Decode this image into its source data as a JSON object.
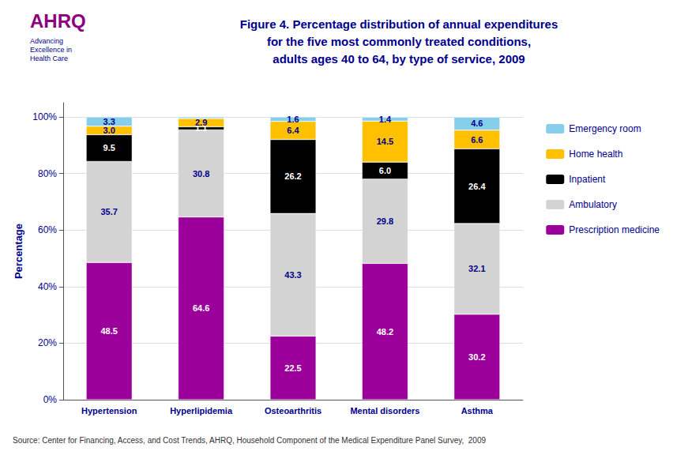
{
  "chart_data": {
    "type": "bar",
    "title": "Figure 4. Percentage distribution of annual expenditures\nfor the five most commonly treated conditions,\nadults ages 40 to 64, by type of service, 2009",
    "ylabel": "Percentage",
    "annotations": [
      "AHRQ",
      "Advancing\nExcellence in\nHealth Care",
      "Source: Center for Financing, Access, and Cost Trends, AHRQ, Household Component of the Medical Expenditure Panel Survey,  2009"
    ],
    "categories": [
      "Hypertension",
      "Hyperlipidemia",
      "Osteoarthritis",
      "Mental disorders",
      "Asthma"
    ],
    "series": [
      {
        "name": "Prescription medicine",
        "color": "#9B009B",
        "values": [
          48.5,
          64.6,
          22.5,
          48.2,
          30.2
        ],
        "value_labels": [
          "48.5",
          "64.6",
          "22.5",
          "48.2",
          "30.2"
        ]
      },
      {
        "name": "Ambulatory",
        "color": "#d3d3d3",
        "values": [
          35.7,
          30.8,
          43.3,
          29.8,
          32.1
        ],
        "value_labels": [
          "35.7",
          "30.8",
          "43.3",
          "29.8",
          "32.1"
        ]
      },
      {
        "name": "Inpatient",
        "color": "#000000",
        "values": [
          9.5,
          1.1,
          26.2,
          6.0,
          26.4
        ],
        "value_labels": [
          "9.5",
          "1.1",
          "26.2",
          "6.0",
          "26.4"
        ]
      },
      {
        "name": "Home health",
        "color": "#ffc000",
        "values": [
          3.0,
          2.9,
          6.4,
          14.5,
          6.6
        ],
        "value_labels": [
          "3.0",
          "2.9",
          "6.4",
          "14.5",
          "6.6"
        ]
      },
      {
        "name": "Emergency room",
        "color": "#87CEEB",
        "values": [
          3.3,
          0.6,
          1.6,
          1.4,
          4.6
        ],
        "value_labels": [
          "3.3",
          null,
          "1.6",
          "1.4",
          "4.6"
        ]
      }
    ],
    "ylim": [
      0,
      105
    ],
    "yticks": [
      {
        "value": 0,
        "label": "0%"
      },
      {
        "value": 20,
        "label": "20%"
      },
      {
        "value": 40,
        "label": "40%"
      },
      {
        "value": 60,
        "label": "60%"
      },
      {
        "value": 80,
        "label": "80%"
      },
      {
        "value": 100,
        "label": "100%"
      }
    ],
    "stacked": true,
    "data_labels": true,
    "grid": true,
    "legend": "upper right"
  }
}
